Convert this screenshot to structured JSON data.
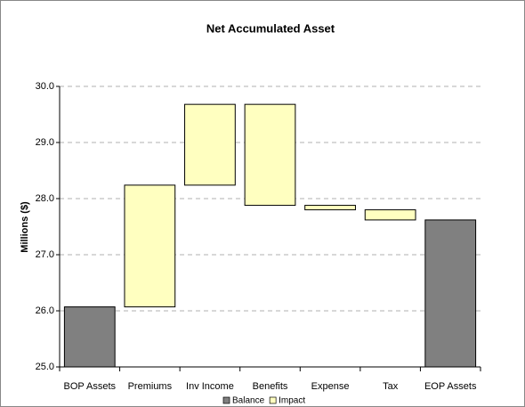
{
  "chart_data": {
    "type": "waterfall",
    "title": "Net Accumulated Asset",
    "y_label": "Millions ($)",
    "categories": [
      "BOP Assets",
      "Premiums",
      "Inv Income",
      "Benefits",
      "Expense",
      "Tax",
      "EOP Assets"
    ],
    "series": [
      {
        "name": "Balance",
        "color": "#808080",
        "values": [
          26.07,
          null,
          null,
          null,
          null,
          null,
          27.62
        ]
      },
      {
        "name": "Impact",
        "color": "#ffffc0",
        "values": [
          null,
          2.17,
          1.44,
          -1.8,
          -0.08,
          -0.18,
          null
        ]
      }
    ],
    "ylim": [
      25,
      30
    ],
    "yticks": [
      {
        "value": 25,
        "label": "25.0"
      },
      {
        "value": 26,
        "label": "26.0"
      },
      {
        "value": 27,
        "label": "27.0"
      },
      {
        "value": 28,
        "label": "28.0"
      },
      {
        "value": 29,
        "label": "29.0"
      },
      {
        "value": 30,
        "label": "30.0"
      }
    ],
    "grid": true,
    "legend": "bottom"
  }
}
